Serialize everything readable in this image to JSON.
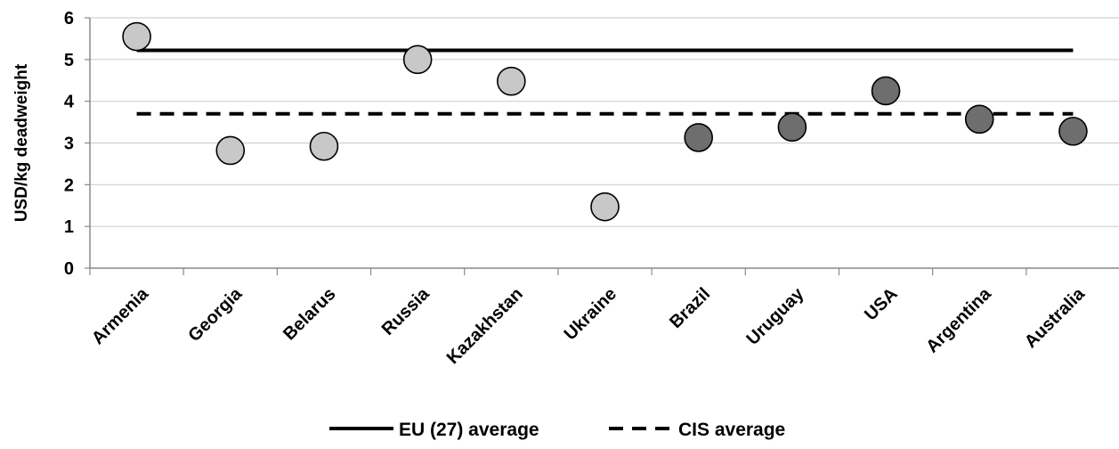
{
  "chart_data": {
    "type": "scatter",
    "title": "",
    "xlabel": "",
    "ylabel": "USD/kg deadweight",
    "ylim": [
      0,
      6
    ],
    "yticks": [
      0,
      1,
      2,
      3,
      4,
      5,
      6
    ],
    "grid": true,
    "legend_position": "bottom",
    "categories": [
      "Armenia",
      "Georgia",
      "Belarus",
      "Russia",
      "Kazakhstan",
      "Ukraine",
      "Brazil",
      "Uruguay",
      "USA",
      "Argentina",
      "Australia"
    ],
    "points": [
      {
        "category": "Armenia",
        "y": 5.55,
        "group": "CIS",
        "color": "#c8c8c8"
      },
      {
        "category": "Georgia",
        "y": 2.82,
        "group": "CIS",
        "color": "#c8c8c8"
      },
      {
        "category": "Belarus",
        "y": 2.92,
        "group": "CIS",
        "color": "#c8c8c8"
      },
      {
        "category": "Russia",
        "y": 5.0,
        "group": "CIS",
        "color": "#c8c8c8"
      },
      {
        "category": "Kazakhstan",
        "y": 4.48,
        "group": "CIS",
        "color": "#c8c8c8"
      },
      {
        "category": "Ukraine",
        "y": 1.47,
        "group": "CIS",
        "color": "#c8c8c8"
      },
      {
        "category": "Brazil",
        "y": 3.13,
        "group": "other",
        "color": "#6e6e6e"
      },
      {
        "category": "Uruguay",
        "y": 3.38,
        "group": "other",
        "color": "#6e6e6e"
      },
      {
        "category": "USA",
        "y": 4.25,
        "group": "other",
        "color": "#6e6e6e"
      },
      {
        "category": "Argentina",
        "y": 3.57,
        "group": "other",
        "color": "#6e6e6e"
      },
      {
        "category": "Australia",
        "y": 3.28,
        "group": "other",
        "color": "#6e6e6e"
      }
    ],
    "reference_lines": [
      {
        "name": "EU (27) average",
        "y": 5.22,
        "style": "solid",
        "color": "#000000"
      },
      {
        "name": "CIS average",
        "y": 3.7,
        "style": "dashed",
        "color": "#000000"
      }
    ]
  }
}
